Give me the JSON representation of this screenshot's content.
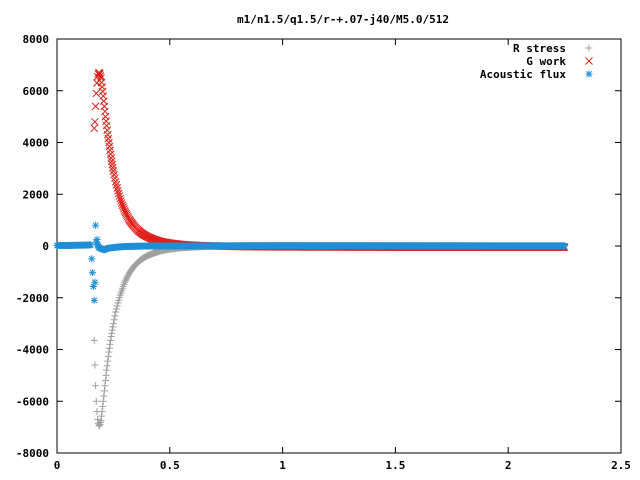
{
  "chart_data": {
    "type": "scatter",
    "title": "m1/n1.5/q1.5/r-+.07-j40/M5.0/512",
    "xlabel": "",
    "ylabel": "",
    "xlim": [
      0,
      2.5
    ],
    "ylim": [
      -8000,
      8000
    ],
    "xticks": [
      "0",
      "0.5",
      "1",
      "1.5",
      "2",
      "2.5"
    ],
    "yticks": [
      "8000",
      "6000",
      "4000",
      "2000",
      "0",
      "-2000",
      "-4000",
      "-6000",
      "-8000"
    ],
    "grid": false,
    "legend_position": "top-right",
    "series": [
      {
        "name": "R stress",
        "marker": "plus",
        "color": "#a0a0a0",
        "x": [
          0.165,
          0.168,
          0.171,
          0.174,
          0.177,
          0.18,
          0.183,
          0.186,
          0.19,
          0.195,
          0.2,
          0.205,
          0.21,
          0.215,
          0.22,
          0.225,
          0.23,
          0.235,
          0.24,
          0.245,
          0.25,
          0.26,
          0.27,
          0.28,
          0.29,
          0.3,
          0.32,
          0.34,
          0.36,
          0.38,
          0.4,
          0.43,
          0.46,
          0.5,
          0.55,
          0.6,
          0.65,
          0.7,
          0.8,
          0.9,
          1.0,
          1.2,
          1.4,
          1.6,
          1.8,
          2.0,
          2.25
        ],
        "y": [
          -3650,
          -4600,
          -5400,
          -6000,
          -6400,
          -6700,
          -6850,
          -6950,
          -6900,
          -6750,
          -6400,
          -6000,
          -5600,
          -5200,
          -4800,
          -4450,
          -4100,
          -3800,
          -3500,
          -3250,
          -3000,
          -2550,
          -2200,
          -1900,
          -1650,
          -1400,
          -1050,
          -800,
          -620,
          -480,
          -380,
          -270,
          -190,
          -120,
          -70,
          -40,
          -20,
          -5,
          10,
          20,
          25,
          20,
          15,
          10,
          10,
          5,
          5
        ]
      },
      {
        "name": "G work",
        "marker": "cross",
        "color": "#e0201b",
        "x": [
          0.165,
          0.168,
          0.171,
          0.174,
          0.177,
          0.18,
          0.183,
          0.186,
          0.19,
          0.195,
          0.2,
          0.205,
          0.21,
          0.215,
          0.22,
          0.225,
          0.23,
          0.235,
          0.24,
          0.245,
          0.25,
          0.26,
          0.27,
          0.28,
          0.29,
          0.3,
          0.32,
          0.34,
          0.36,
          0.38,
          0.4,
          0.43,
          0.46,
          0.5,
          0.55,
          0.6,
          0.65,
          0.7,
          0.8,
          0.9,
          1.0,
          1.2,
          1.4,
          1.6,
          1.8,
          2.0,
          2.25
        ],
        "y": [
          4550,
          4800,
          5400,
          5900,
          6300,
          6550,
          6650,
          6700,
          6650,
          6500,
          6150,
          5800,
          5400,
          5000,
          4650,
          4300,
          4000,
          3700,
          3400,
          3150,
          2900,
          2480,
          2130,
          1830,
          1580,
          1360,
          1020,
          780,
          600,
          460,
          360,
          250,
          170,
          110,
          60,
          30,
          10,
          0,
          -20,
          -30,
          -35,
          -40,
          -45,
          -50,
          -50,
          -50,
          -50
        ]
      },
      {
        "name": "Acoustic flux",
        "marker": "star",
        "color": "#1f8fd6",
        "x": [
          0.0,
          0.05,
          0.1,
          0.15,
          0.165,
          0.168,
          0.171,
          0.174,
          0.177,
          0.18,
          0.185,
          0.19,
          0.2,
          0.21,
          0.22,
          0.23,
          0.25,
          0.27,
          0.3,
          0.35,
          0.4,
          0.5,
          0.6,
          0.7,
          0.8,
          1.0,
          1.2,
          1.4,
          1.6,
          1.8,
          2.0,
          2.25
        ],
        "y": [
          20,
          20,
          30,
          40,
          -2100,
          -1400,
          800,
          150,
          250,
          50,
          -50,
          -80,
          -120,
          -150,
          -100,
          -80,
          -60,
          -40,
          -20,
          -10,
          0,
          0,
          0,
          5,
          5,
          5,
          5,
          5,
          5,
          5,
          5,
          5
        ]
      }
    ]
  }
}
